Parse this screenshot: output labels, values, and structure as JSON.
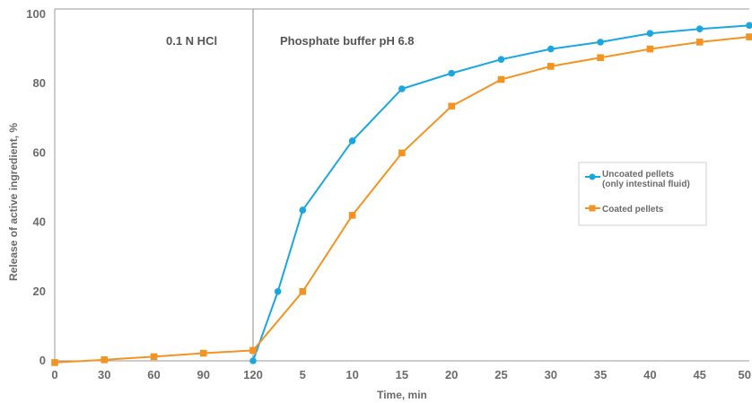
{
  "chart_data": {
    "type": "line",
    "xlabel": "Time, min",
    "ylabel": "Release of active ingredient, %",
    "ylim": [
      0,
      100
    ],
    "yticks": [
      "0",
      "20",
      "40",
      "60",
      "80",
      "100"
    ],
    "xtick_labels": [
      "0",
      "30",
      "60",
      "90",
      "120",
      "5",
      "10",
      "15",
      "20",
      "25",
      "30",
      "35",
      "40",
      "45",
      "50"
    ],
    "phase_labels": [
      "0.1 N HCl",
      "Phosphate buffer pH 6.8"
    ],
    "grid": false,
    "legend_position": "right",
    "series": [
      {
        "name": "Uncoated pellets",
        "name_line2": "(only intestinal fluid)",
        "color": "#1aa7e0",
        "marker": "circle",
        "points": [
          {
            "x": 120,
            "y": 0
          },
          {
            "x": 2.5,
            "y": 20
          },
          {
            "x": 5,
            "y": 43.5
          },
          {
            "x": 10,
            "y": 63.5
          },
          {
            "x": 15,
            "y": 78.5
          },
          {
            "x": 20,
            "y": 83
          },
          {
            "x": 25,
            "y": 87
          },
          {
            "x": 30,
            "y": 90
          },
          {
            "x": 35,
            "y": 92
          },
          {
            "x": 40,
            "y": 94.5
          },
          {
            "x": 45,
            "y": 95.8
          },
          {
            "x": 50,
            "y": 96.8
          }
        ]
      },
      {
        "name": "Coated pellets",
        "color": "#f39422",
        "marker": "square",
        "points": [
          {
            "x": 0,
            "y": -0.5
          },
          {
            "x": 30,
            "y": 0.3
          },
          {
            "x": 60,
            "y": 1.2
          },
          {
            "x": 90,
            "y": 2.2
          },
          {
            "x": 120,
            "y": 3
          },
          {
            "x": 5,
            "y": 20
          },
          {
            "x": 10,
            "y": 42
          },
          {
            "x": 15,
            "y": 60
          },
          {
            "x": 20,
            "y": 73.5
          },
          {
            "x": 25,
            "y": 81.2
          },
          {
            "x": 30,
            "y": 85
          },
          {
            "x": 35,
            "y": 87.5
          },
          {
            "x": 40,
            "y": 90
          },
          {
            "x": 45,
            "y": 92
          },
          {
            "x": 50,
            "y": 93.5
          }
        ]
      }
    ]
  }
}
